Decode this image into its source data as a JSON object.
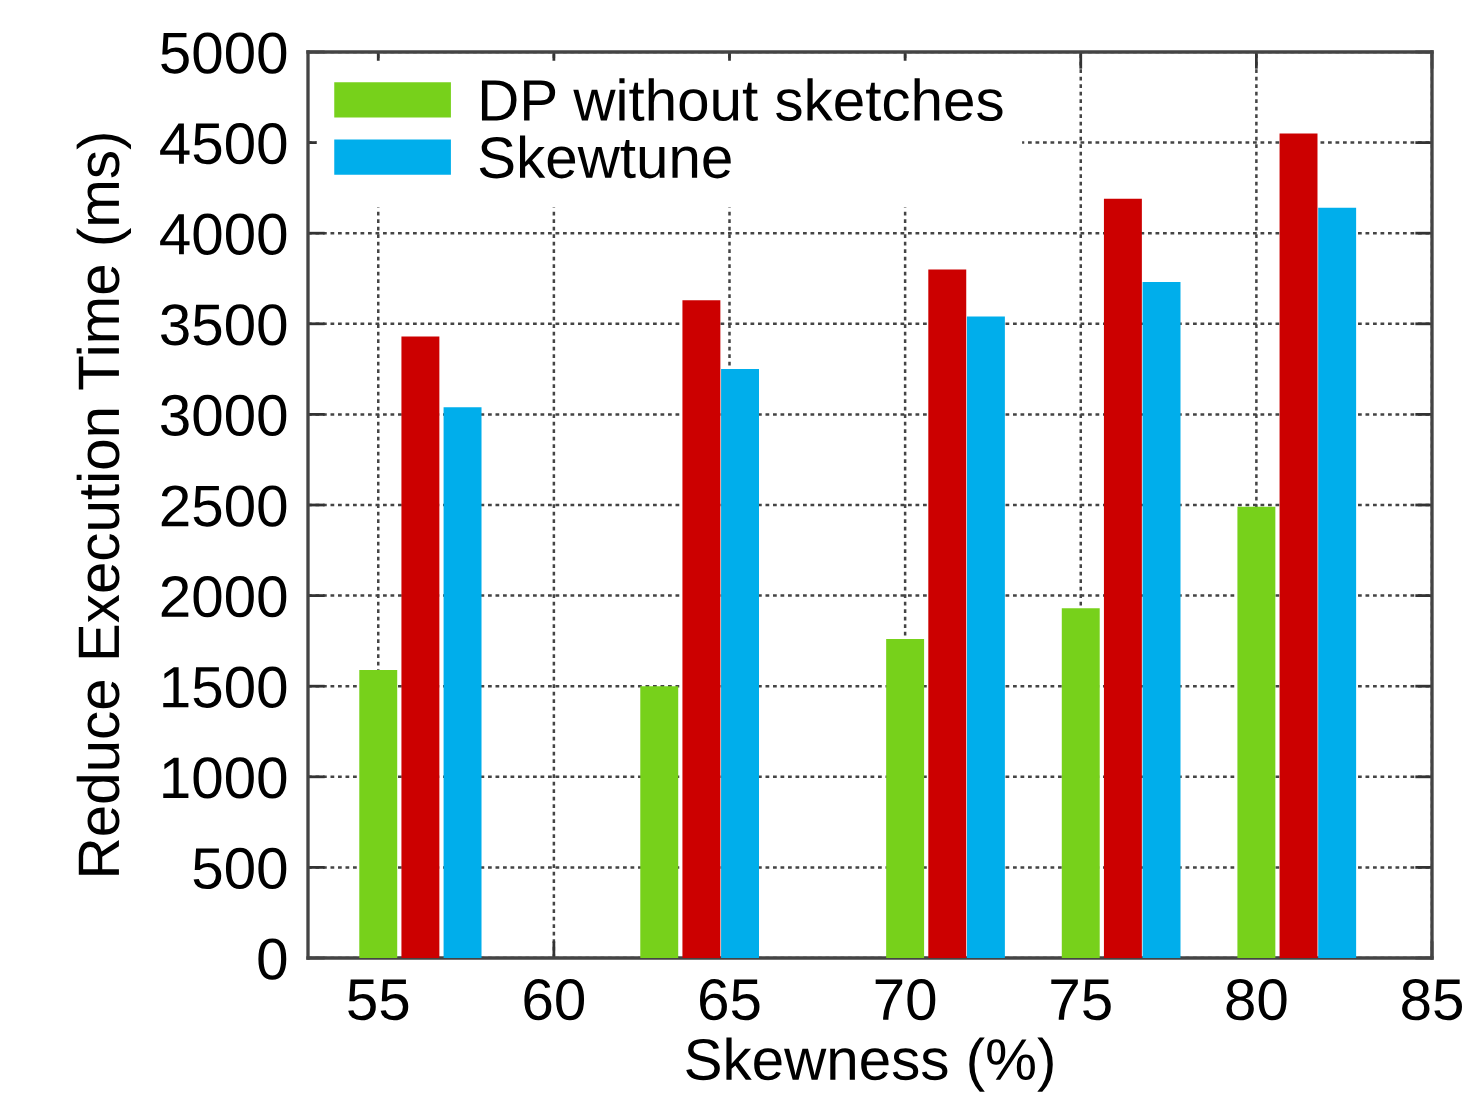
{
  "chart_data": {
    "type": "bar",
    "xlabel": "Skewness (%)",
    "ylabel": "Reduce Execution Time (ms)",
    "xlim": [
      53,
      85
    ],
    "xticks": [
      55,
      60,
      65,
      70,
      75,
      80,
      85
    ],
    "ylim": [
      0,
      5000
    ],
    "yticks": [
      0,
      500,
      1000,
      1500,
      2000,
      2500,
      3000,
      3500,
      4000,
      4500,
      5000
    ],
    "grid": true,
    "legend": "top left",
    "series": [
      {
        "name": "DP without sketches",
        "color": "#77d11b",
        "x": [
          55,
          63,
          70,
          75,
          80
        ],
        "values": [
          1590,
          1500,
          1760,
          1930,
          2490
        ]
      },
      {
        "color": "#cc0000",
        "x": [
          56.2,
          64.2,
          71.2,
          76.2,
          81.2
        ],
        "values": [
          3430,
          3630,
          3800,
          4190,
          4550
        ]
      },
      {
        "name": "Skewtune",
        "color": "#00aeeb",
        "x": [
          57.4,
          65.3,
          72.3,
          77.3,
          82.3
        ],
        "values": [
          3040,
          3250,
          3540,
          3730,
          4140
        ]
      }
    ]
  }
}
